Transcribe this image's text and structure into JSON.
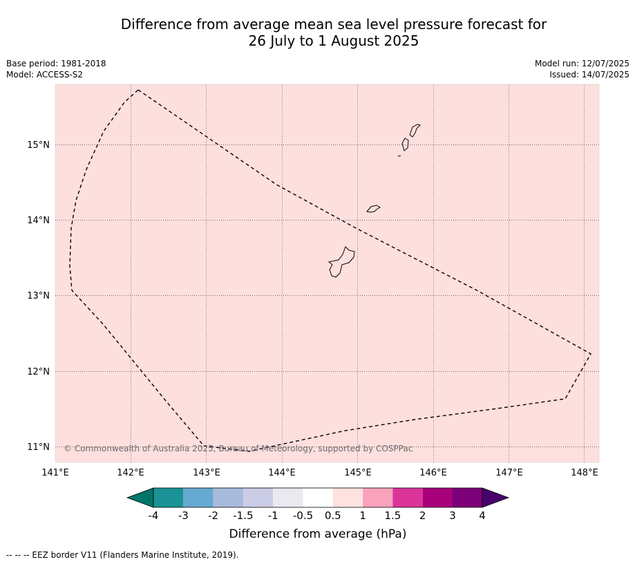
{
  "title_line1": "Difference from average mean sea level pressure forecast for",
  "title_line2": "26 July to 1 August 2025",
  "meta_left": [
    "Base period: 1981-2018",
    "Model: ACCESS-S2"
  ],
  "meta_right": [
    "Model run: 12/07/2025",
    "Issued: 14/07/2025"
  ],
  "map": {
    "background_color": "#fddfde",
    "gridlines": "dotted",
    "x_ticks": [
      "141°E",
      "142°E",
      "143°E",
      "144°E",
      "145°E",
      "146°E",
      "147°E",
      "148°E"
    ],
    "y_ticks": [
      "15°N",
      "14°N",
      "13°N",
      "12°N",
      "11°N"
    ],
    "copyright": "© Commonwealth of Australia 2025, Bureau of Meteorology, supported by COSPPac"
  },
  "colorbar": {
    "label": "Difference from average (hPa)",
    "colors": [
      "#00756a",
      "#1b9295",
      "#66a9d1",
      "#a8badb",
      "#cbcce5",
      "#ebe9ef",
      "#ffffff",
      "#fde2df",
      "#f8a2bc",
      "#db3499",
      "#a8027b",
      "#7c0079",
      "#49006a"
    ],
    "tick_labels": [
      "-4",
      "-3",
      "-2",
      "-1.5",
      "-1",
      "-0.5",
      "0.5",
      "1",
      "1.5",
      "2",
      "3",
      "4"
    ]
  },
  "footnote": "--  --  -- EEZ border V11 (Flanders Marine Institute, 2019)."
}
